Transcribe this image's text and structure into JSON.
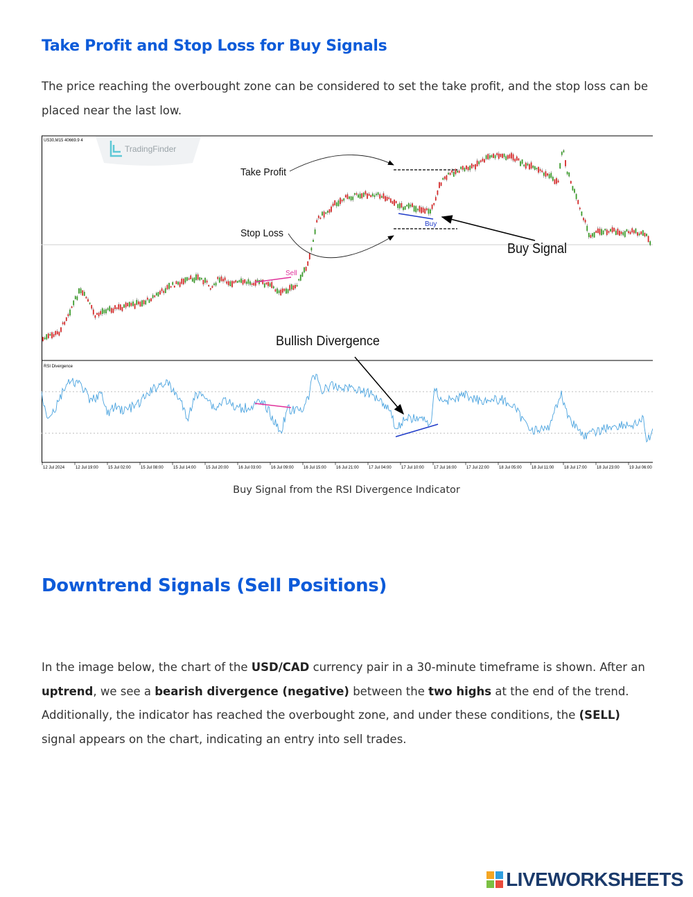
{
  "section1": {
    "title": "Take Profit and Stop Loss for Buy Signals",
    "paragraph": "The price reaching the overbought zone can be considered to set the take profit, and the stop loss can be placed near the last low."
  },
  "figure": {
    "caption": "Buy Signal from the RSI Divergence Indicator",
    "symbol_label": "US30,M15  40669.9 4",
    "watermark": "TradingFinder",
    "rsi_label": "RSI Divergence",
    "annotations": {
      "take_profit": "Take Profit",
      "stop_loss": "Stop Loss",
      "sell": "Sell",
      "buy": "Buy",
      "buy_signal": "Buy Signal",
      "bullish_divergence": "Bullish Divergence"
    },
    "time_labels": [
      "12 Jul 2024",
      "12 Jul 19:00",
      "15 Jul 02:00",
      "15 Jul 08:00",
      "15 Jul 14:00",
      "15 Jul 20:00",
      "16 Jul 03:00",
      "16 Jul 09:00",
      "16 Jul 15:00",
      "16 Jul 21:00",
      "17 Jul 04:00",
      "17 Jul 10:00",
      "17 Jul 16:00",
      "17 Jul 22:00",
      "18 Jul 05:00",
      "18 Jul 11:00",
      "18 Jul 17:00",
      "18 Jul 23:00",
      "19 Jul 06:00"
    ],
    "colors": {
      "up": "#3a9a2a",
      "down": "#d42a2a",
      "rsi": "#4aa3df",
      "sell": "#e0309a",
      "buy": "#1f3bc8"
    }
  },
  "section2": {
    "title": "Downtrend Signals (Sell Positions)",
    "p_a": "In the image below, the chart of the ",
    "p_b": "USD/CAD",
    "p_c": " currency pair in a 30-minute timeframe is shown. After an ",
    "p_d": "uptrend",
    "p_e": ", we see a ",
    "p_f": "bearish divergence (negative)",
    "p_g": " between the ",
    "p_h": "two highs",
    "p_i": " at the end of the trend. Additionally, the indicator has reached the overbought zone, and under these conditions, the ",
    "p_j": "(SELL)",
    "p_k": " signal appears on the chart, indicating an entry into sell trades."
  },
  "logo": {
    "text": "LIVEWORKSHEETS"
  }
}
